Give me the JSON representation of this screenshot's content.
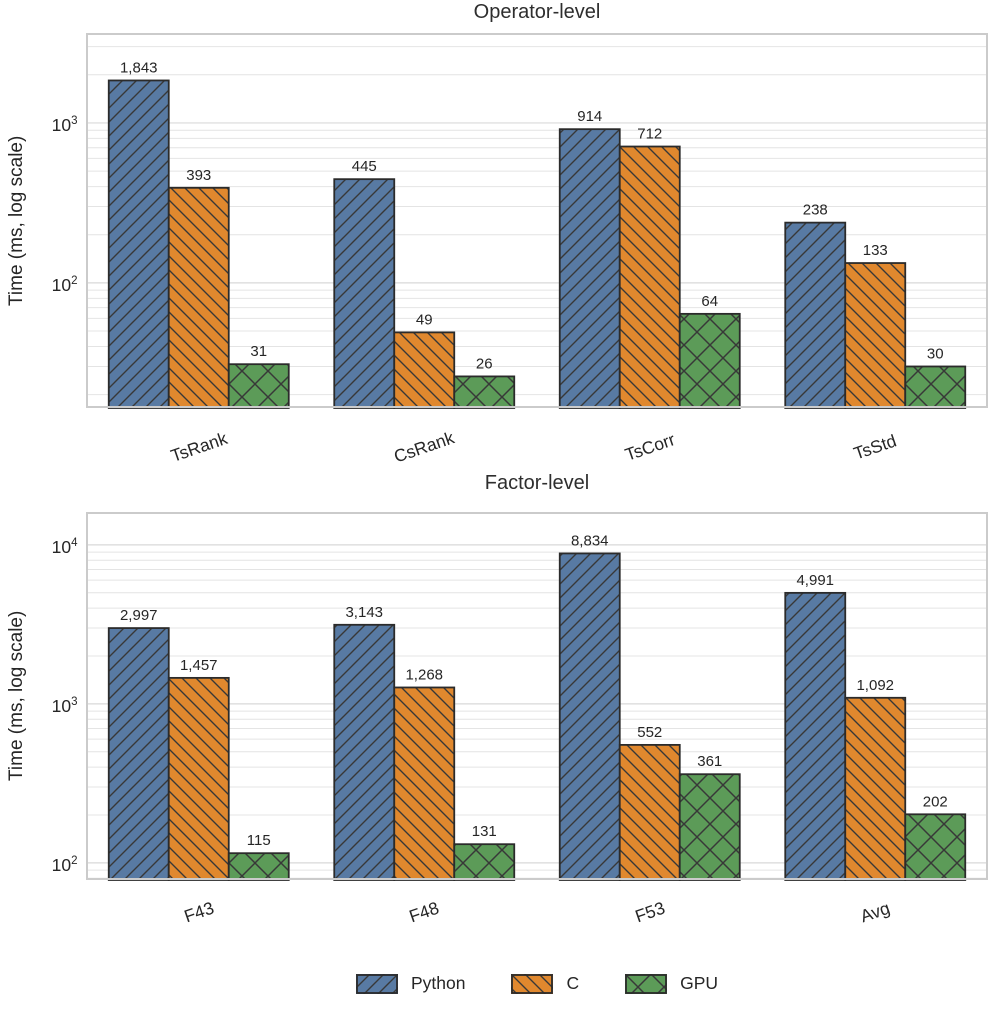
{
  "figure": {
    "palette": {
      "python": "#587AA3",
      "c": "#E0882E",
      "gpu": "#5C9B58",
      "bar_edge": "#2b2b2b",
      "hatch_line": "#383838",
      "grid_major": "#d9d9d9",
      "grid_minor": "#e4e4e4",
      "frame": "#cbcbcb",
      "text": "#262626"
    }
  },
  "legend": {
    "items": [
      {
        "label": "Python",
        "color_key": "python",
        "hatch": "fwd"
      },
      {
        "label": "C",
        "color_key": "c",
        "hatch": "back"
      },
      {
        "label": "GPU",
        "color_key": "gpu",
        "hatch": "cross"
      }
    ]
  },
  "chart_data": [
    {
      "type": "bar",
      "title": "Operator-level",
      "ylabel": "Time (ms, log scale)",
      "yscale": "log",
      "grid": true,
      "categories": [
        "TsRank",
        "CsRank",
        "TsCorr",
        "TsStd"
      ],
      "series": [
        {
          "name": "Python",
          "color_key": "python",
          "hatch": "fwd",
          "values": [
            1843,
            445,
            914,
            238
          ],
          "labels": [
            "1,843",
            "445",
            "914",
            "238"
          ]
        },
        {
          "name": "C",
          "color_key": "c",
          "hatch": "back",
          "values": [
            393,
            49,
            712,
            133
          ],
          "labels": [
            "393",
            "49",
            "712",
            "133"
          ]
        },
        {
          "name": "GPU",
          "color_key": "gpu",
          "hatch": "cross",
          "values": [
            31,
            26,
            64,
            30
          ],
          "labels": [
            "31",
            "26",
            "64",
            "30"
          ]
        }
      ],
      "ylim": [
        16.5,
        3650
      ],
      "yticks": [
        {
          "value": 100,
          "base": "10",
          "exponent": "2"
        },
        {
          "value": 1000,
          "base": "10",
          "exponent": "3"
        }
      ]
    },
    {
      "type": "bar",
      "title": "Factor-level",
      "ylabel": "Time (ms, log scale)",
      "yscale": "log",
      "grid": true,
      "categories": [
        "F43",
        "F48",
        "F53",
        "Avg"
      ],
      "series": [
        {
          "name": "Python",
          "color_key": "python",
          "hatch": "fwd",
          "values": [
            2997,
            3143,
            8834,
            4991
          ],
          "labels": [
            "2,997",
            "3,143",
            "8,834",
            "4,991"
          ]
        },
        {
          "name": "C",
          "color_key": "c",
          "hatch": "back",
          "values": [
            1457,
            1268,
            552,
            1092
          ],
          "labels": [
            "1,457",
            "1,268",
            "552",
            "1,092"
          ]
        },
        {
          "name": "GPU",
          "color_key": "gpu",
          "hatch": "cross",
          "values": [
            115,
            131,
            361,
            202
          ],
          "labels": [
            "115",
            "131",
            "361",
            "202"
          ]
        }
      ],
      "ylim": [
        78,
        16100
      ],
      "yticks": [
        {
          "value": 100,
          "base": "10",
          "exponent": "2"
        },
        {
          "value": 1000,
          "base": "10",
          "exponent": "3"
        },
        {
          "value": 10000,
          "base": "10",
          "exponent": "4"
        }
      ]
    }
  ]
}
